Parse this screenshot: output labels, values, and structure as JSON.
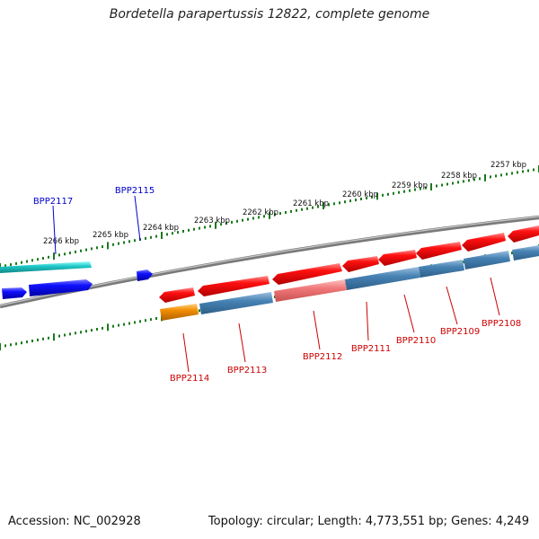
{
  "title": "Bordetella parapertussis 12822, complete genome",
  "accession": "Accession: NC_002928",
  "summary": "Topology: circular; Length: 4,773,551 bp; Genes: 4,249",
  "ticks": [
    {
      "label": "2257 kbp"
    },
    {
      "label": "2258 kbp"
    },
    {
      "label": "2259 kbp"
    },
    {
      "label": "2260 kbp"
    },
    {
      "label": "2261 kbp"
    },
    {
      "label": "2262 kbp"
    },
    {
      "label": "2263 kbp"
    },
    {
      "label": "2264 kbp"
    },
    {
      "label": "2265 kbp"
    },
    {
      "label": "2266 kbp"
    }
  ],
  "genes_forward": [
    {
      "label": "BPP2117",
      "color": "#0000cc"
    },
    {
      "label": "BPP2115",
      "color": "#0000cc"
    }
  ],
  "genes_reverse": [
    {
      "label": "BPP2114",
      "color": "#cc0000"
    },
    {
      "label": "BPP2113",
      "color": "#cc0000"
    },
    {
      "label": "BPP2112",
      "color": "#cc0000"
    },
    {
      "label": "BPP2111",
      "color": "#cc0000"
    },
    {
      "label": "BPP2110",
      "color": "#cc0000"
    },
    {
      "label": "BPP2109",
      "color": "#cc0000"
    },
    {
      "label": "BPP2108",
      "color": "#cc0000"
    }
  ],
  "colors": {
    "cds_forward": "#0000ee",
    "cds_reverse": "#ee0000",
    "cds_reverse_light": "#f08080",
    "feature_steel": "#4682b4",
    "feature_cyan": "#20c8c8",
    "feature_orange": "#f08c00",
    "backbone": "#808080",
    "ticks": "#1a7a1a"
  }
}
